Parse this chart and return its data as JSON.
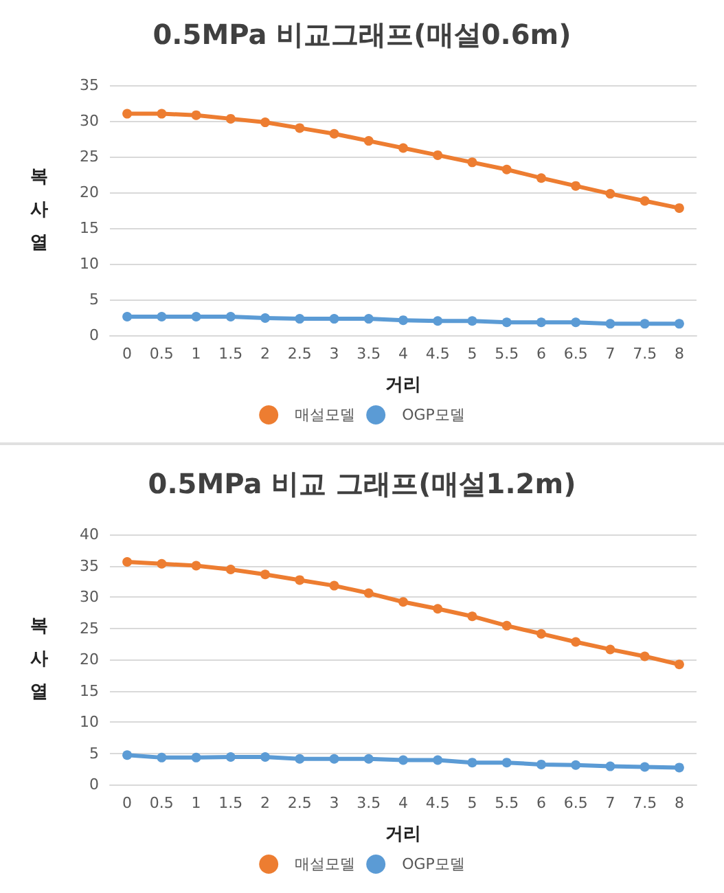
{
  "chart_data": [
    {
      "type": "line",
      "title": "0.5MPa 비교그래프(매설0.6m)",
      "xlabel": "거리",
      "ylabel": "복사열",
      "categories": [
        "0",
        "0.5",
        "1",
        "1.5",
        "2",
        "2.5",
        "3",
        "3.5",
        "4",
        "4.5",
        "5",
        "5.5",
        "6",
        "6.5",
        "7",
        "7.5",
        "8"
      ],
      "ylim": [
        0,
        35
      ],
      "yticks": [
        0,
        5,
        10,
        15,
        20,
        25,
        30,
        35
      ],
      "grid": "y",
      "legend": "bottom",
      "marker": "circle",
      "line_style": "solid",
      "series": [
        {
          "name": "매설모델",
          "color": "#ed7d31",
          "values": [
            31.0,
            31.0,
            30.8,
            30.3,
            29.8,
            29.0,
            28.2,
            27.2,
            26.2,
            25.2,
            24.2,
            23.2,
            22.0,
            20.9,
            19.8,
            18.8,
            17.8
          ]
        },
        {
          "name": "OGP모델",
          "color": "#5b9bd5",
          "values": [
            2.6,
            2.6,
            2.6,
            2.6,
            2.4,
            2.3,
            2.3,
            2.3,
            2.1,
            2.0,
            2.0,
            1.8,
            1.8,
            1.8,
            1.6,
            1.6,
            1.6
          ]
        }
      ]
    },
    {
      "type": "line",
      "title": "0.5MPa 비교 그래프(매설1.2m)",
      "xlabel": "거리",
      "ylabel": "복사열",
      "categories": [
        "0",
        "0.5",
        "1",
        "1.5",
        "2",
        "2.5",
        "3",
        "3.5",
        "4",
        "4.5",
        "5",
        "5.5",
        "6",
        "6.5",
        "7",
        "7.5",
        "8"
      ],
      "ylim": [
        0,
        40
      ],
      "yticks": [
        0,
        5,
        10,
        15,
        20,
        25,
        30,
        35,
        40
      ],
      "grid": "y",
      "legend": "bottom",
      "marker": "circle",
      "line_style": "solid",
      "series": [
        {
          "name": "매설모델",
          "color": "#ed7d31",
          "values": [
            35.6,
            35.3,
            35.0,
            34.4,
            33.6,
            32.7,
            31.8,
            30.6,
            29.2,
            28.1,
            26.9,
            25.4,
            24.1,
            22.8,
            21.6,
            20.5,
            19.2
          ]
        },
        {
          "name": "OGP모델",
          "color": "#5b9bd5",
          "values": [
            4.7,
            4.3,
            4.3,
            4.4,
            4.4,
            4.1,
            4.1,
            4.1,
            3.9,
            3.9,
            3.5,
            3.5,
            3.2,
            3.1,
            2.9,
            2.8,
            2.7
          ]
        }
      ]
    }
  ]
}
